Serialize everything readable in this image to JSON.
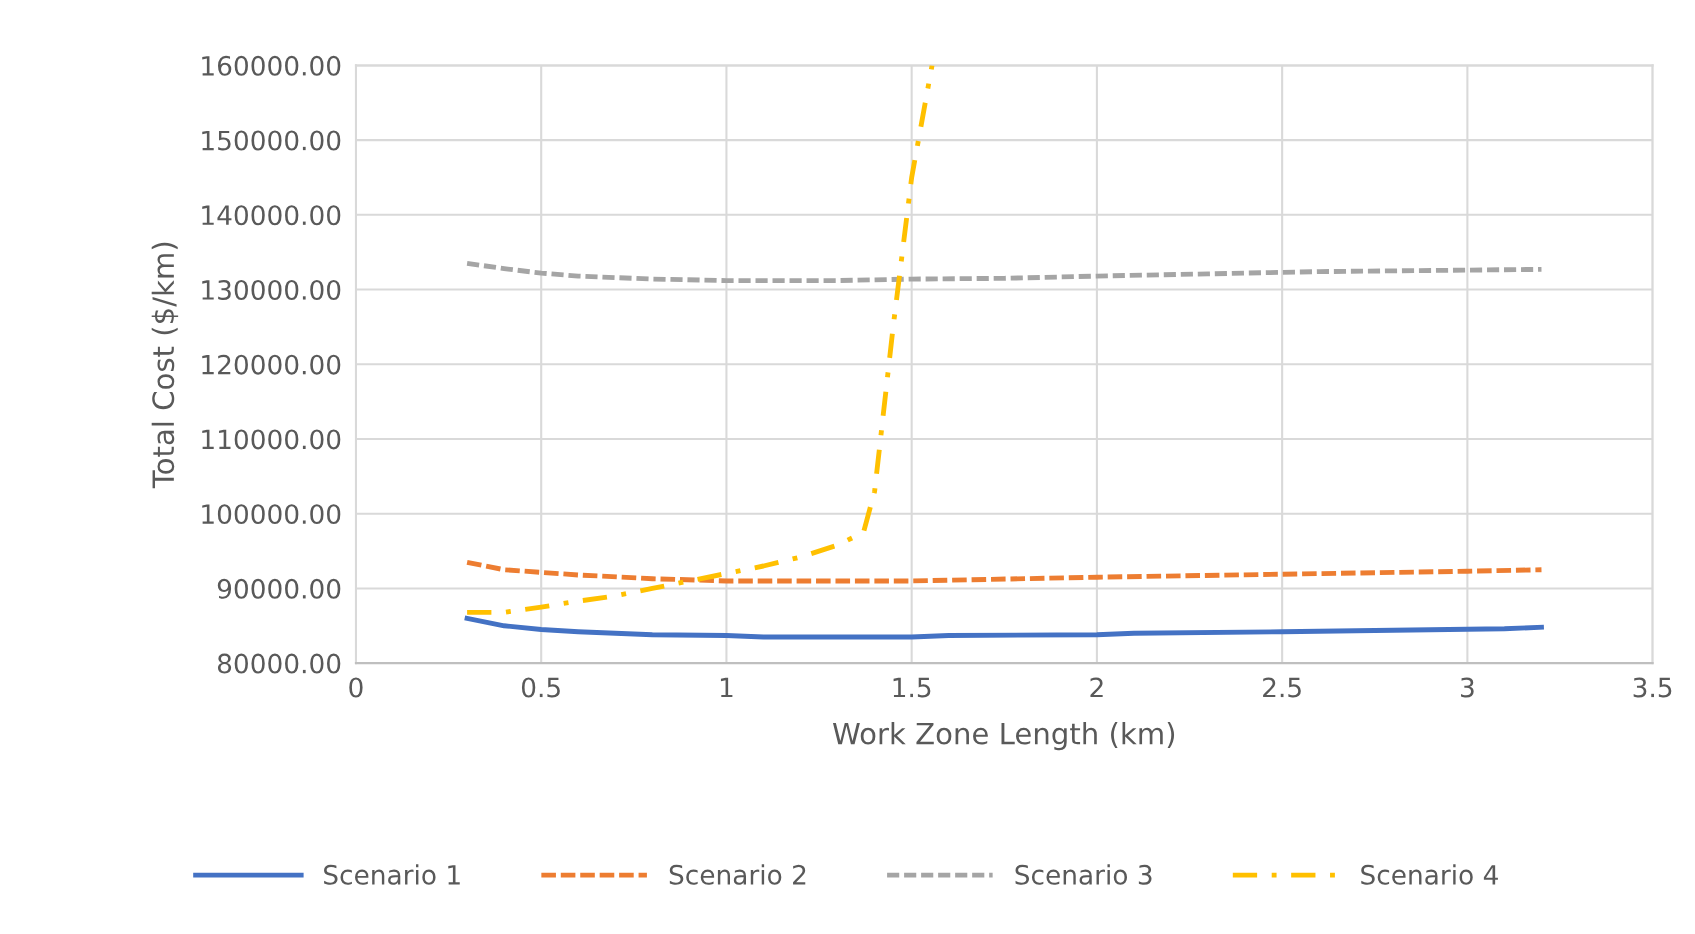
{
  "chart_data": {
    "type": "line",
    "xlabel": "Work Zone Length (km)",
    "ylabel": "Total Cost ($/km)",
    "xlim": [
      0,
      3.5
    ],
    "xticks": [
      0,
      0.5,
      1,
      1.5,
      2,
      2.5,
      3,
      3.5
    ],
    "ylim": [
      80000,
      160000
    ],
    "yticks": [
      {
        "value": 80000,
        "label": "80000.00"
      },
      {
        "value": 90000,
        "label": "90000.00"
      },
      {
        "value": 100000,
        "label": "100000.00"
      },
      {
        "value": 110000,
        "label": "110000.00"
      },
      {
        "value": 120000,
        "label": "120000.00"
      },
      {
        "value": 130000,
        "label": "130000.00"
      },
      {
        "value": 140000,
        "label": "140000.00"
      },
      {
        "value": 150000,
        "label": "150000.00"
      },
      {
        "value": 160000,
        "label": "160000.00"
      }
    ],
    "grid": true,
    "legend": "bottom",
    "marker": "none",
    "series": [
      {
        "name": "Scenario 1",
        "color": "#4472c4",
        "line_style": "solid",
        "x": [
          0.3,
          0.4,
          0.5,
          0.6,
          0.8,
          1.0,
          1.1,
          1.5,
          1.6,
          2.0,
          2.1,
          2.5,
          2.8,
          3.1,
          3.2
        ],
        "values": [
          86000,
          85000,
          84500,
          84200,
          83800,
          83700,
          83500,
          83500,
          83700,
          83800,
          84000,
          84200,
          84400,
          84600,
          84800
        ]
      },
      {
        "name": "Scenario 2",
        "color": "#ed7d31",
        "line_style": "dashed",
        "x": [
          0.3,
          0.4,
          0.6,
          0.8,
          1.0,
          1.5,
          2.0,
          2.5,
          3.0,
          3.2
        ],
        "values": [
          93500,
          92500,
          91800,
          91300,
          91000,
          91000,
          91500,
          91900,
          92300,
          92500
        ]
      },
      {
        "name": "Scenario 3",
        "color": "#a5a5a5",
        "line_style": "dotted",
        "x": [
          0.3,
          0.4,
          0.5,
          0.6,
          0.8,
          1.0,
          1.3,
          1.5,
          1.75,
          2.0,
          2.3,
          2.6,
          3.2
        ],
        "values": [
          133500,
          132800,
          132200,
          131800,
          131400,
          131200,
          131200,
          131400,
          131500,
          131800,
          132100,
          132400,
          132700
        ]
      },
      {
        "name": "Scenario 4",
        "color": "#ffc000",
        "line_style": "dashdot",
        "x": [
          0.3,
          0.4,
          0.5,
          0.6,
          0.7,
          0.8,
          0.9,
          1.0,
          1.1,
          1.2,
          1.3,
          1.37,
          1.4,
          1.45,
          1.5,
          1.555
        ],
        "values": [
          86800,
          86800,
          87500,
          88300,
          89000,
          90000,
          91000,
          92000,
          93000,
          94200,
          95800,
          97500,
          103000,
          125000,
          145000,
          160000
        ]
      }
    ]
  }
}
